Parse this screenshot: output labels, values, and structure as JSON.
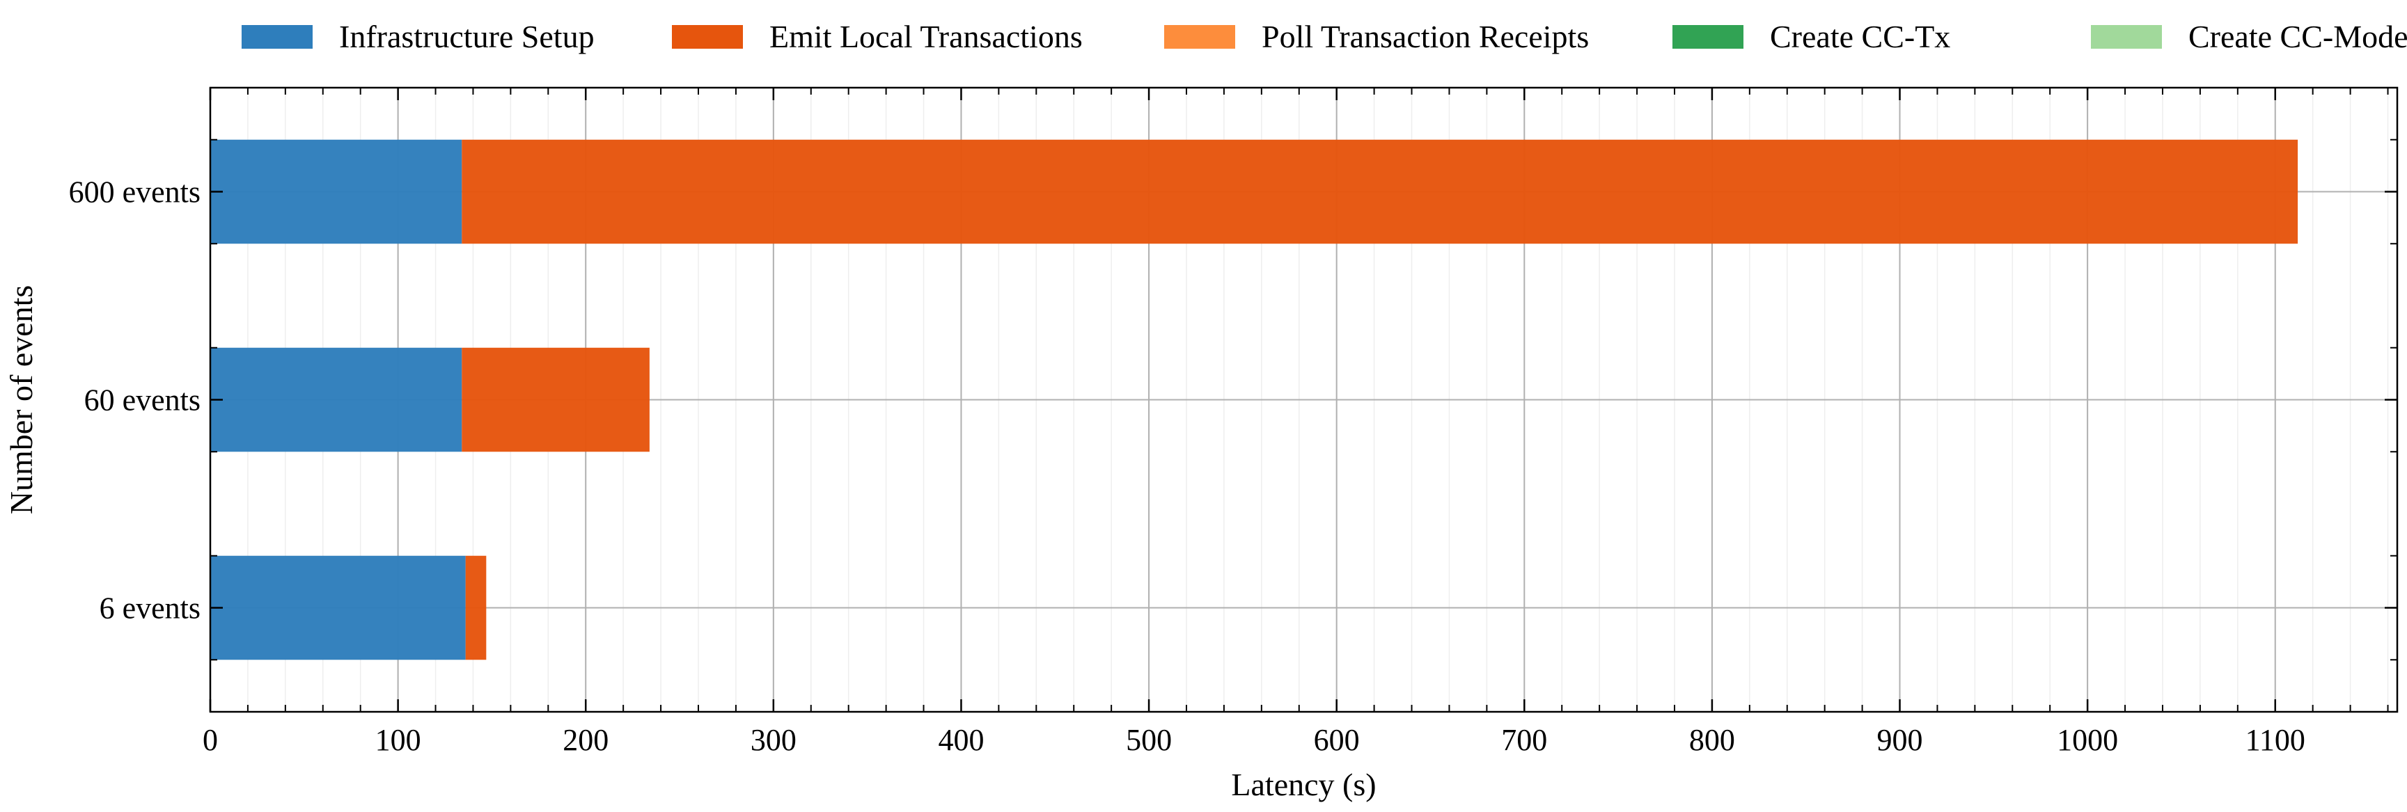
{
  "chart_data": {
    "type": "bar",
    "orientation": "horizontal",
    "stacked": true,
    "categories": [
      "6 events",
      "60 events",
      "600 events"
    ],
    "series": [
      {
        "name": "Infrastructure Setup",
        "color": "#2e7ebc",
        "values": [
          136,
          134,
          134
        ]
      },
      {
        "name": "Emit Local Transactions",
        "color": "#e6550d",
        "values": [
          11,
          100,
          978
        ]
      },
      {
        "name": "Poll Transaction Receipts",
        "color": "#fd8d3c",
        "values": [
          0,
          0,
          0
        ]
      },
      {
        "name": "Create CC-Tx",
        "color": "#31a354",
        "values": [
          0,
          0,
          0
        ]
      },
      {
        "name": "Create CC-Model",
        "color": "#a1d99b",
        "values": [
          0,
          0,
          0
        ]
      }
    ],
    "xlabel": "Latency (s)",
    "ylabel": "Number of events",
    "xlim": [
      0,
      1165
    ],
    "xticks": [
      0,
      100,
      200,
      300,
      400,
      500,
      600,
      700,
      800,
      900,
      1000,
      1100
    ],
    "minor_xtick_step": 20,
    "grid": true,
    "legend_position": "top"
  }
}
